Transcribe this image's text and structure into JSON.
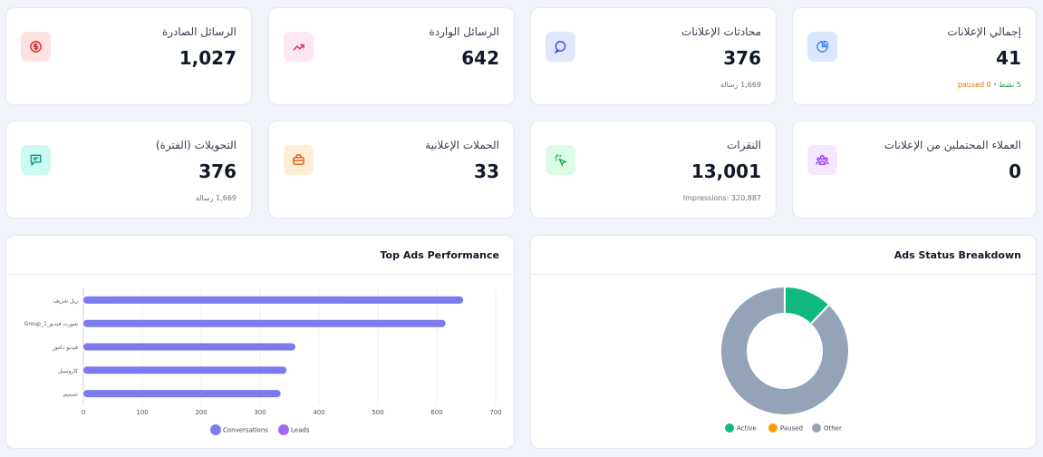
{
  "colors": {
    "page_bg": "#f0f3fa",
    "card_bg": "#ffffff",
    "bar": "#7b7bef",
    "leads": "#a06cf5",
    "active": "#10b981",
    "paused": "#f59e0b",
    "other": "#94a3b8"
  },
  "stats_row1": [
    {
      "title": "إجمالي الإعلانات",
      "value": "41",
      "sub_active": "5 نشط",
      "sub_paused": "paused 0",
      "icon": "pie-chart-icon"
    },
    {
      "title": "محادثات الإعلانات",
      "value": "376",
      "sub": "1,669 رسالة",
      "icon": "chat-bubble-icon"
    },
    {
      "title": "الرسائل الواردة",
      "value": "642",
      "icon": "trending-up-icon"
    },
    {
      "title": "الرسائل الصادرة",
      "value": "1,027",
      "icon": "dollar-circle-icon"
    }
  ],
  "stats_row2": [
    {
      "title": "العملاء المحتملين من الإعلانات",
      "value": "0",
      "icon": "users-icon"
    },
    {
      "title": "النقرات",
      "value": "13,001",
      "sub": "Impressions: 320,887",
      "icon": "cursor-click-icon"
    },
    {
      "title": "الحملات الإعلانية",
      "value": "33",
      "icon": "briefcase-icon"
    },
    {
      "title": "التحويلات (الفترة)",
      "value": "376",
      "sub": "1,669 رسالة",
      "icon": "message-square-icon"
    }
  ],
  "panels": {
    "top_ads_title": "Top Ads Performance",
    "status_title": "Ads Status Breakdown"
  },
  "chart_data": [
    {
      "type": "bar",
      "orientation": "horizontal",
      "title": "Top Ads Performance",
      "categories": [
        "ريل شريف",
        "Group_1_شورت فيديو",
        "فيديو دكتور",
        "كاروسيل",
        "تصميم"
      ],
      "series": [
        {
          "name": "Conversations",
          "values": [
            645,
            615,
            360,
            345,
            335
          ]
        },
        {
          "name": "Leads",
          "values": [
            0,
            0,
            0,
            0,
            0
          ]
        }
      ],
      "xlim": [
        0,
        700
      ],
      "xticks": [
        "0",
        "100",
        "200",
        "300",
        "400",
        "500",
        "600",
        "700"
      ],
      "grid": true,
      "legend": "bottom"
    },
    {
      "type": "pie",
      "title": "Ads Status Breakdown",
      "donut": true,
      "labels": [
        "Active",
        "Paused",
        "Other"
      ],
      "values": [
        5,
        0,
        36
      ],
      "legend": "bottom"
    }
  ]
}
